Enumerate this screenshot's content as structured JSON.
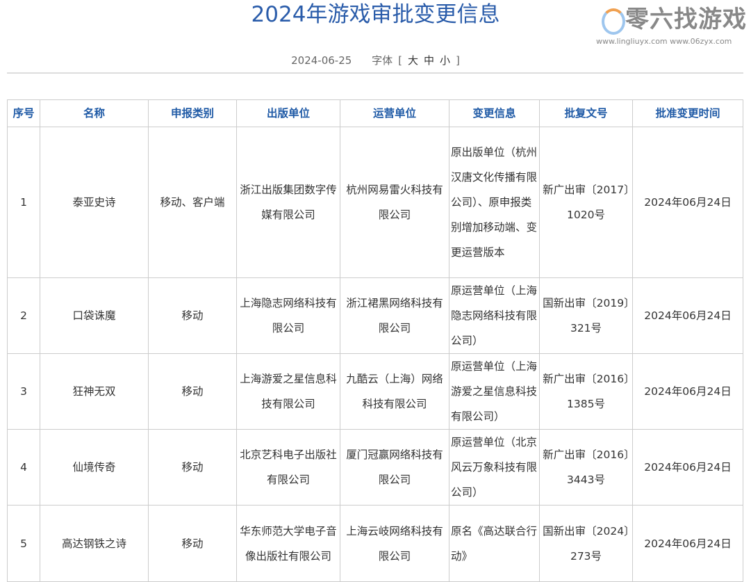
{
  "title": "2024年游戏审批变更信息",
  "date": "2024-06-25",
  "font_label": "字体",
  "font_open": "[",
  "font_sizes": [
    "大",
    "中",
    "小"
  ],
  "font_close": "]",
  "table": {
    "headers": [
      "序号",
      "名称",
      "申报类别",
      "出版单位",
      "运营单位",
      "变更信息",
      "批复文号",
      "批准变更时间"
    ],
    "rows": [
      [
        "1",
        "泰亚史诗",
        "移动、客户端",
        "浙江出版集团数字传媒有限公司",
        "杭州网易雷火科技有限公司",
        "原出版单位（杭州汉唐文化传播有限公司）、原申报类别增加移动端、变更运营版本",
        "新广出审〔2017〕1020号",
        "2024年06月24日"
      ],
      [
        "2",
        "口袋诛魔",
        "移动",
        "上海隐志网络科技有限公司",
        "浙江裙黑网络科技有限公司",
        "原运营单位（上海隐志网络科技有限公司）",
        "国新出审〔2019〕321号",
        "2024年06月24日"
      ],
      [
        "3",
        "狂神无双",
        "移动",
        "上海游爱之星信息科技有限公司",
        "九酷云（上海）网络科技有限公司",
        "原运营单位（上海游爱之星信息科技有限公司）",
        "新广出审〔2016〕1385号",
        "2024年06月24日"
      ],
      [
        "4",
        "仙境传奇",
        "移动",
        "北京艺科电子出版社有限公司",
        "厦门冠赢网络科技有限公司",
        "原运营单位（北京风云万象科技有限公司）",
        "新广出审〔2016〕3443号",
        "2024年06月24日"
      ],
      [
        "5",
        "高达钢铁之诗",
        "移动",
        "华东师范大学电子音像出版社有限公司",
        "上海云岐网络科技有限公司",
        "原名《高达联合行动》",
        "国新出审〔2024〕273号",
        "2024年06月24日"
      ]
    ]
  },
  "watermark": {
    "name": "零六找游戏",
    "urls": "www.lingliuyx.com  www.06zyx.com"
  },
  "colors": {
    "title": "#2a5caa",
    "header_text": "#1f5aa6",
    "border": "#cccccc"
  }
}
